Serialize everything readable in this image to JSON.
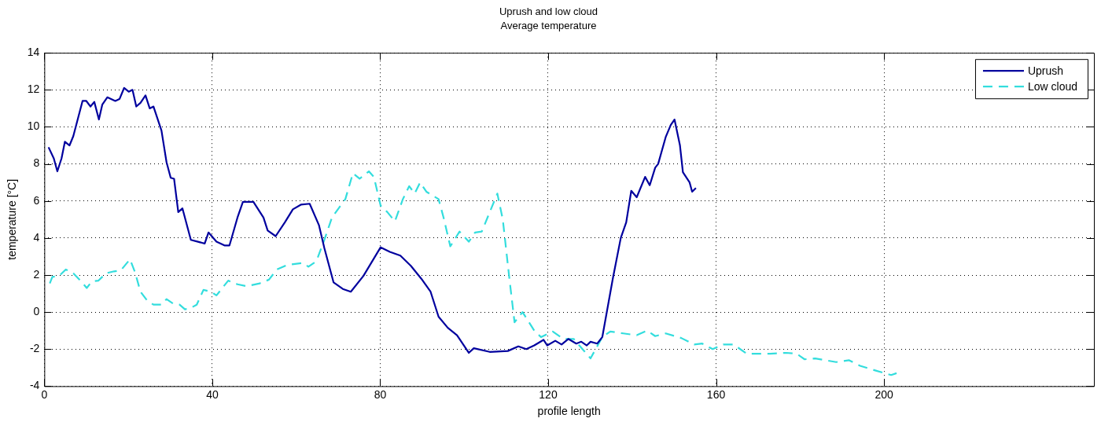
{
  "chart_data": {
    "type": "line",
    "title": "Uprush and low cloud",
    "subtitle": "Average temperature",
    "xlabel": "profile length",
    "ylabel": "temperature [°C]",
    "xlim": [
      0,
      250
    ],
    "xticks": [
      0,
      40,
      80,
      120,
      160,
      200
    ],
    "ylim": [
      -4,
      14
    ],
    "yticks": [
      -4,
      -2,
      0,
      2,
      4,
      6,
      8,
      10,
      12,
      14
    ],
    "grid": true,
    "legend": "top right",
    "marker": "none",
    "series": [
      {
        "name": "Uprush",
        "color": "#00009e",
        "line_style": "solid",
        "x": [
          1,
          2.25,
          3.1,
          4.1,
          4.9,
          6,
          6.9,
          9.1,
          10,
          11,
          11.9,
          13,
          13.8,
          15,
          16.9,
          17.9,
          19,
          20.1,
          21,
          21.9,
          22.9,
          24.1,
          25.1,
          26,
          27.9,
          29.1,
          30.1,
          30.9,
          31.9,
          32.9,
          34.9,
          36.6,
          38.2,
          39.1,
          41,
          42.9,
          44.1,
          46,
          47.3,
          49.8,
          52.2,
          53.2,
          55.1,
          57.3,
          59.2,
          61.1,
          63.2,
          65.4,
          66.7,
          68.9,
          71.1,
          73,
          76,
          80.1,
          82.3,
          84.8,
          87.3,
          89.8,
          92,
          93.9,
          96.1,
          98.3,
          101.1,
          102.3,
          106.1,
          110.4,
          112.9,
          114.8,
          116.7,
          118.9,
          119.8,
          121.7,
          123.2,
          124.8,
          126.7,
          127.9,
          129.2,
          130.1,
          131.7,
          132.9,
          135.4,
          137.3,
          138.6,
          139.8,
          141.1,
          143.1,
          144.2,
          145.5,
          146.2,
          148,
          149.2,
          150.1,
          151.4,
          152.1,
          153.7,
          154.3,
          155.2
        ],
        "values": [
          8.9,
          8.3,
          7.6,
          8.3,
          9.2,
          9,
          9.5,
          11.4,
          11.4,
          11.1,
          11.35,
          10.4,
          11.2,
          11.6,
          11.4,
          11.5,
          12.1,
          11.9,
          12,
          11.1,
          11.3,
          11.7,
          11,
          11.1,
          9.8,
          8.1,
          7.25,
          7.2,
          5.4,
          5.6,
          3.9,
          3.8,
          3.7,
          4.3,
          3.8,
          3.6,
          3.6,
          5.1,
          5.95,
          5.95,
          5.1,
          4.4,
          4.1,
          4.85,
          5.55,
          5.8,
          5.85,
          4.7,
          3.45,
          1.6,
          1.25,
          1.1,
          1.95,
          3.5,
          3.25,
          3.05,
          2.5,
          1.8,
          1.1,
          -0.25,
          -0.85,
          -1.25,
          -2.2,
          -1.95,
          -2.15,
          -2.1,
          -1.85,
          -2,
          -1.8,
          -1.5,
          -1.8,
          -1.55,
          -1.75,
          -1.45,
          -1.7,
          -1.6,
          -1.8,
          -1.6,
          -1.7,
          -1.35,
          1.8,
          4,
          4.85,
          6.55,
          6.2,
          7.3,
          6.85,
          7.8,
          8,
          9.45,
          10.1,
          10.4,
          9,
          7.55,
          7,
          6.5,
          6.7
        ]
      },
      {
        "name": "Low cloud",
        "color": "#33dddd",
        "line_style": "dashed",
        "x": [
          1.3,
          1.9,
          3.5,
          5.1,
          6.9,
          8.8,
          10.1,
          11.3,
          12.9,
          14.7,
          16.6,
          18.2,
          20.4,
          21.6,
          22.9,
          24.4,
          26,
          27.9,
          29.1,
          30.7,
          32.2,
          33.5,
          34.7,
          36.3,
          37.9,
          39.7,
          41,
          43.8,
          46,
          48.2,
          51.3,
          53.5,
          55.4,
          57.9,
          61.6,
          62.9,
          64.8,
          66.7,
          68.5,
          70.4,
          71.7,
          73.5,
          75.1,
          77.3,
          78.5,
          80.1,
          81.7,
          83.5,
          85.4,
          86.9,
          88.2,
          89.5,
          91,
          93.9,
          95.1,
          96.7,
          98.9,
          101.1,
          102.6,
          104.2,
          107.9,
          109.2,
          110.7,
          112,
          113.9,
          116.7,
          118.3,
          121.1,
          123.6,
          126.1,
          130.1,
          132.9,
          134.8,
          137.9,
          141.1,
          143.6,
          145.5,
          148,
          151.7,
          154.8,
          156.7,
          159.2,
          161.7,
          164.2,
          167.3,
          172.9,
          176.7,
          179.2,
          181.1,
          183.6,
          188.6,
          191.7,
          194.3,
          197.9,
          201.7,
          203
        ],
        "values": [
          1.55,
          1.9,
          1.95,
          2.3,
          2.1,
          1.65,
          1.3,
          1.65,
          1.7,
          2.1,
          2.2,
          2.25,
          2.85,
          2.15,
          1.1,
          0.65,
          0.4,
          0.4,
          0.7,
          0.45,
          0.4,
          0.15,
          0.2,
          0.4,
          1.2,
          1.1,
          0.9,
          1.7,
          1.5,
          1.4,
          1.55,
          1.75,
          2.3,
          2.55,
          2.65,
          2.45,
          2.75,
          3.9,
          5.1,
          5.7,
          6.1,
          7.5,
          7.2,
          7.6,
          7.3,
          5.75,
          5.4,
          4.9,
          6.1,
          6.8,
          6.4,
          7,
          6.5,
          6.1,
          5.1,
          3.55,
          4.35,
          3.8,
          4.3,
          4.35,
          6.4,
          5,
          1.95,
          -0.55,
          0,
          -1,
          -1.35,
          -1.05,
          -1.45,
          -1.45,
          -2.5,
          -1.35,
          -1.05,
          -1.15,
          -1.25,
          -1,
          -1.3,
          -1.15,
          -1.4,
          -1.75,
          -1.7,
          -2,
          -1.75,
          -1.75,
          -2.25,
          -2.25,
          -2.2,
          -2.25,
          -2.55,
          -2.5,
          -2.7,
          -2.6,
          -2.9,
          -3.15,
          -3.4,
          -3.3
        ]
      }
    ]
  }
}
